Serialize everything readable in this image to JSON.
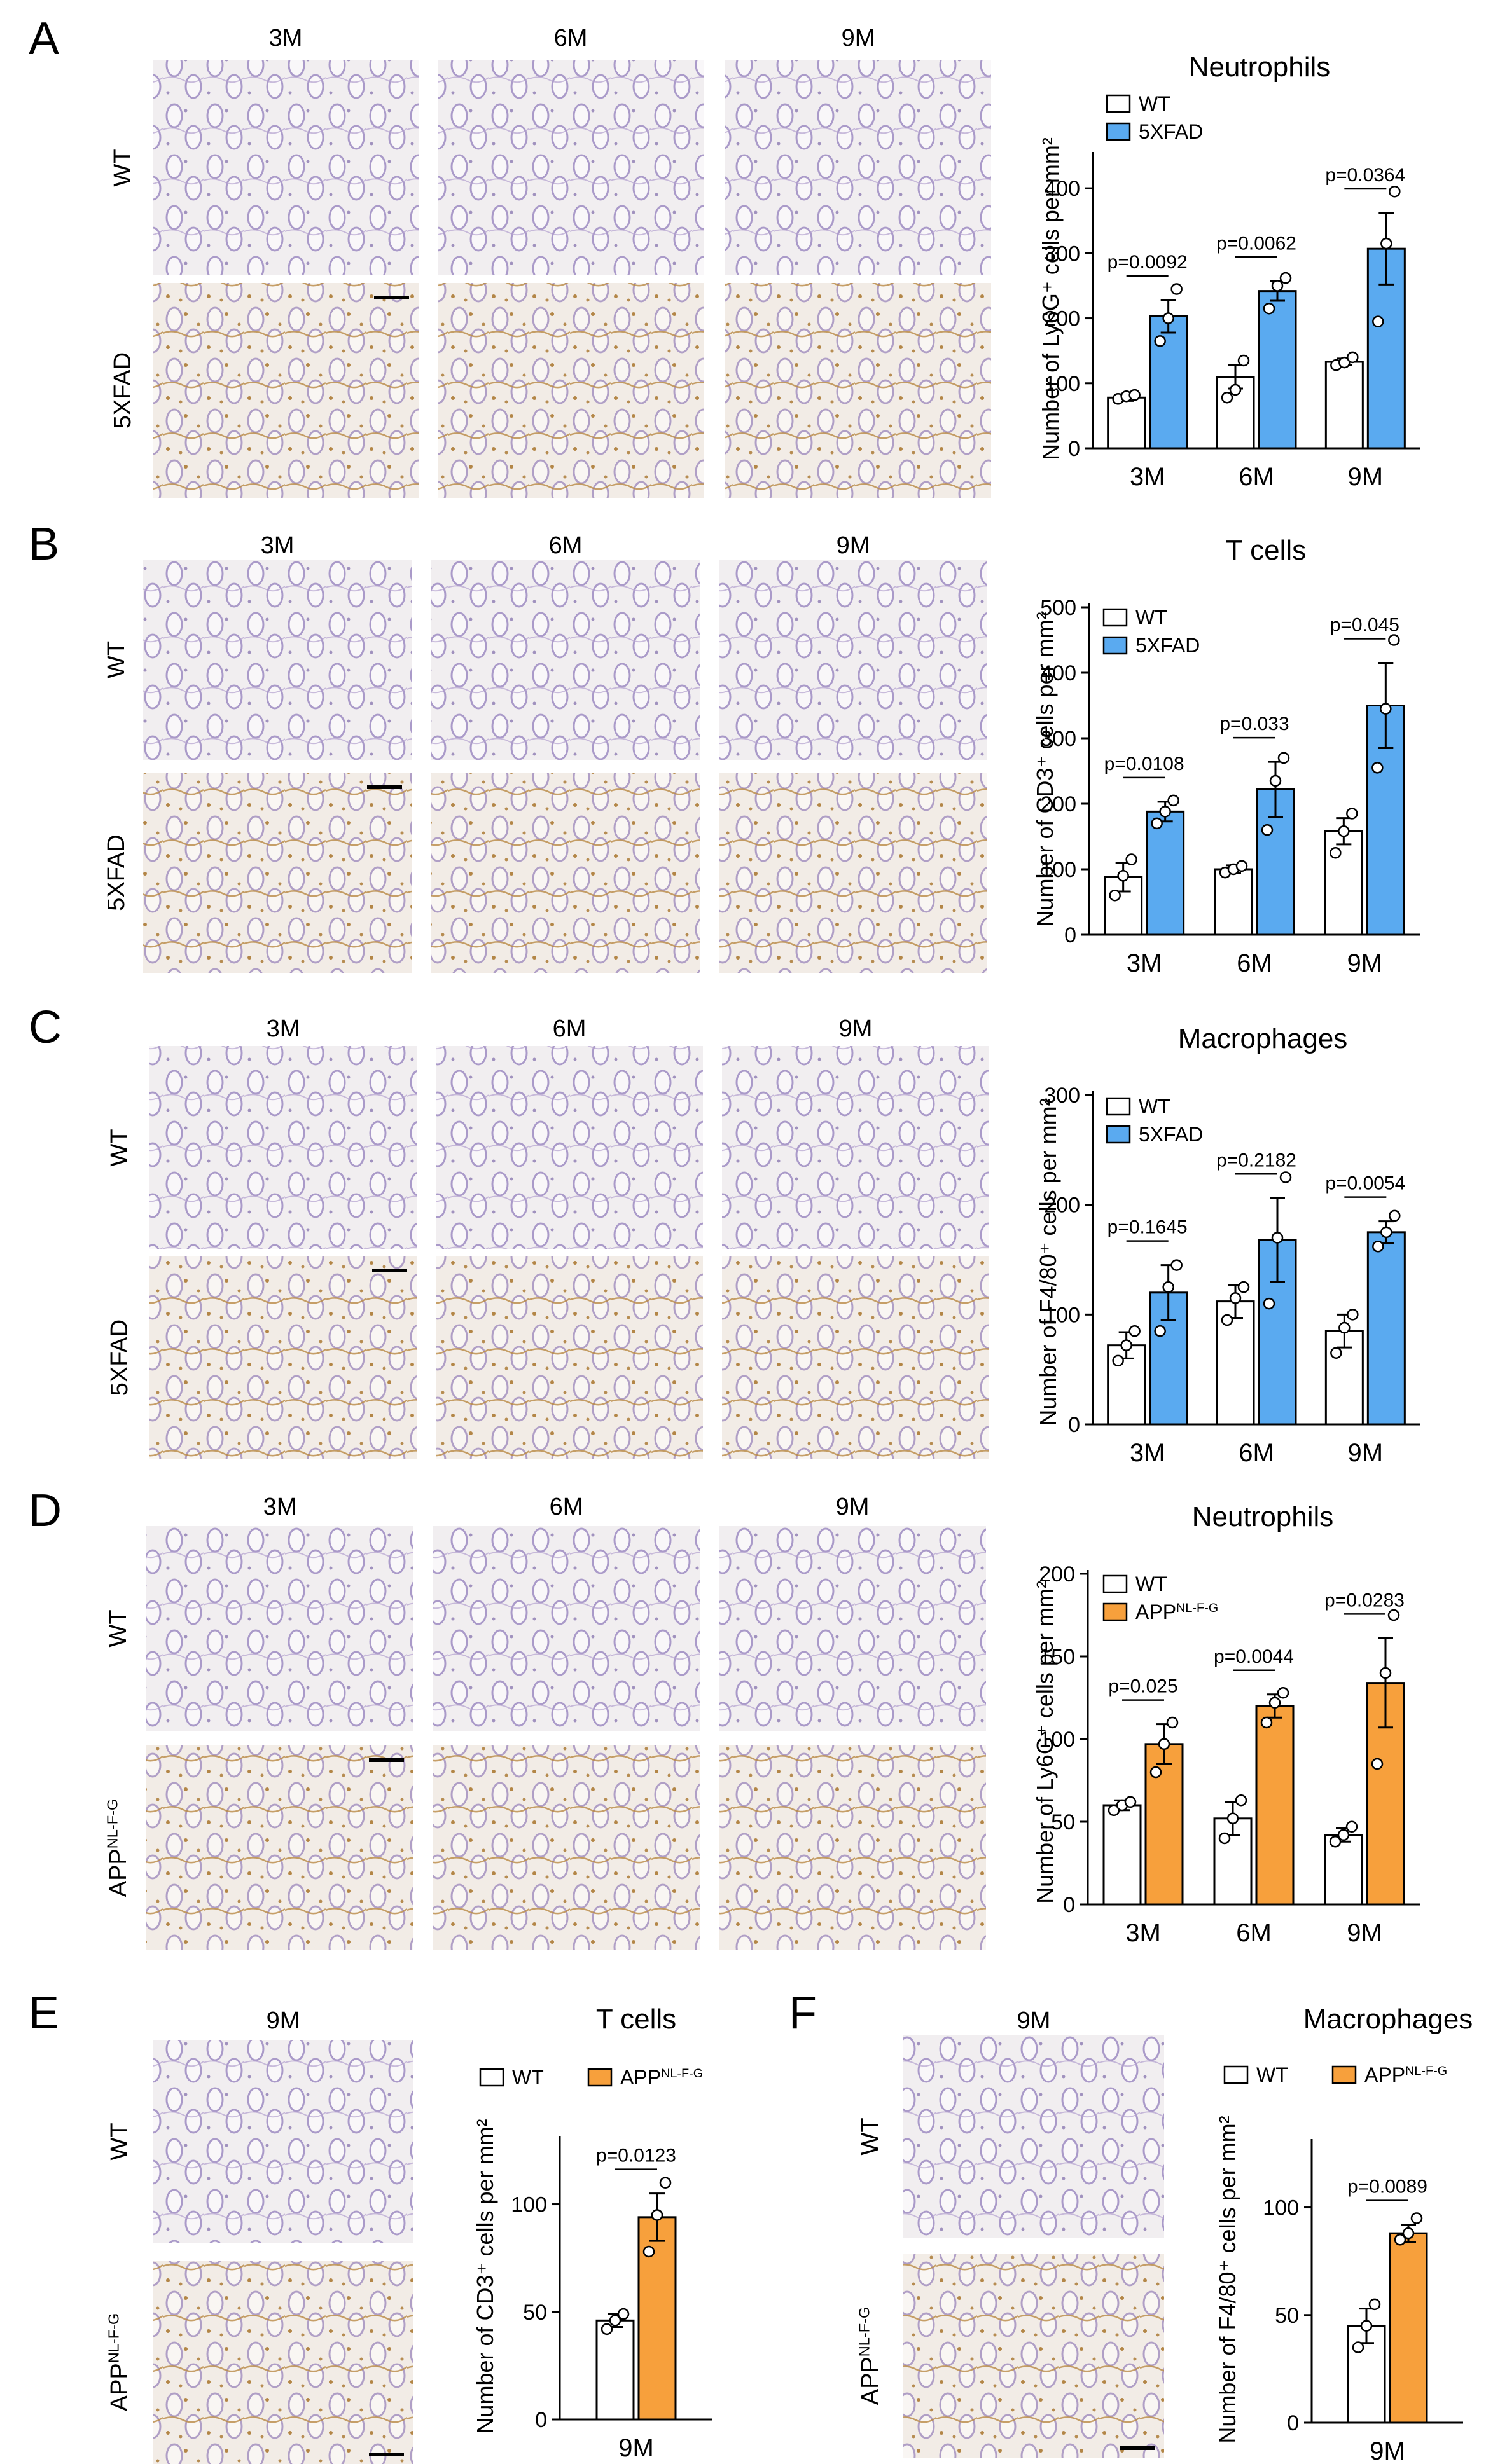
{
  "figure": {
    "colors": {
      "wt_fill": "#ffffff",
      "fad_fill": "#5aaaf0",
      "app_fill": "#f7a03c",
      "tissue_bg": "#eeeaec",
      "stain_purple": "#8a78b4",
      "stain_brown": "#b4823c"
    }
  },
  "panels": [
    {
      "letter": "A",
      "micrographs": {
        "columns": [
          "3M",
          "6M",
          "9M"
        ],
        "rows": [
          "WT",
          "5XFAD"
        ],
        "scale_bar": true
      },
      "chart_data": {
        "type": "bar",
        "title": "Neutrophils",
        "ylabel": "Number of Ly6G⁺ cells per mm²",
        "categories": [
          "3M",
          "6M",
          "9M"
        ],
        "ylim": [
          0,
          450
        ],
        "yticks": [
          0,
          100,
          200,
          300,
          400
        ],
        "legend": [
          "WT",
          "5XFAD"
        ],
        "series": [
          {
            "name": "WT",
            "values": [
              78,
              110,
              133
            ],
            "errors": [
              5,
              18,
              5
            ],
            "points": [
              [
                76,
                80,
                82
              ],
              [
                78,
                90,
                135
              ],
              [
                128,
                132,
                140
              ]
            ]
          },
          {
            "name": "5XFAD",
            "values": [
              203,
              242,
              307
            ],
            "errors": [
              25,
              15,
              55
            ],
            "points": [
              [
                165,
                200,
                245
              ],
              [
                215,
                250,
                262
              ],
              [
                195,
                315,
                395
              ]
            ]
          }
        ],
        "pvalues": [
          "p=0.0092",
          "p=0.0062",
          "p=0.0364"
        ]
      }
    },
    {
      "letter": "B",
      "micrographs": {
        "columns": [
          "3M",
          "6M",
          "9M"
        ],
        "rows": [
          "WT",
          "5XFAD"
        ],
        "scale_bar": true
      },
      "chart_data": {
        "type": "bar",
        "title": "T cells",
        "ylabel": "Number of CD3⁺ cells per mm²",
        "categories": [
          "3M",
          "6M",
          "9M"
        ],
        "ylim": [
          0,
          500
        ],
        "yticks": [
          0,
          100,
          200,
          300,
          400,
          500
        ],
        "legend": [
          "WT",
          "5XFAD"
        ],
        "series": [
          {
            "name": "WT",
            "values": [
              88,
              100,
              158
            ],
            "errors": [
              22,
              6,
              20
            ],
            "points": [
              [
                60,
                90,
                115
              ],
              [
                95,
                100,
                105
              ],
              [
                125,
                158,
                185
              ]
            ]
          },
          {
            "name": "5XFAD",
            "values": [
              188,
              222,
              350
            ],
            "errors": [
              15,
              42,
              65
            ],
            "points": [
              [
                170,
                188,
                205
              ],
              [
                160,
                235,
                270
              ],
              [
                255,
                345,
                450
              ]
            ]
          }
        ],
        "pvalues": [
          "p=0.0108",
          "p=0.033",
          "p=0.045"
        ]
      }
    },
    {
      "letter": "C",
      "micrographs": {
        "columns": [
          "3M",
          "6M",
          "9M"
        ],
        "rows": [
          "WT",
          "5XFAD"
        ],
        "scale_bar": true
      },
      "chart_data": {
        "type": "bar",
        "title": "Macrophages",
        "ylabel": "Number of F4/80⁺ cells per mm²",
        "categories": [
          "3M",
          "6M",
          "9M"
        ],
        "ylim": [
          0,
          300
        ],
        "yticks": [
          0,
          100,
          200,
          300
        ],
        "legend": [
          "WT",
          "5XFAD"
        ],
        "series": [
          {
            "name": "WT",
            "values": [
              72,
              112,
              85
            ],
            "errors": [
              12,
              15,
              15
            ],
            "points": [
              [
                58,
                72,
                85
              ],
              [
                95,
                115,
                125
              ],
              [
                65,
                88,
                100
              ]
            ]
          },
          {
            "name": "5XFAD",
            "values": [
              120,
              168,
              175
            ],
            "errors": [
              25,
              38,
              10
            ],
            "points": [
              [
                85,
                125,
                145
              ],
              [
                110,
                170,
                225
              ],
              [
                162,
                175,
                190
              ]
            ]
          }
        ],
        "pvalues": [
          "p=0.1645",
          "p=0.2182",
          "p=0.0054"
        ]
      }
    },
    {
      "letter": "D",
      "micrographs": {
        "columns": [
          "3M",
          "6M",
          "9M"
        ],
        "rows": [
          "WT",
          "APPNL-F-G"
        ],
        "scale_bar": true
      },
      "chart_data": {
        "type": "bar",
        "title": "Neutrophils",
        "ylabel": "Number of Ly6G⁺ cells per mm²",
        "categories": [
          "3M",
          "6M",
          "9M"
        ],
        "ylim": [
          0,
          200
        ],
        "yticks": [
          0,
          50,
          100,
          150,
          200
        ],
        "legend": [
          "WT",
          "APPNL-F-G"
        ],
        "series": [
          {
            "name": "WT",
            "values": [
              60,
              52,
              42
            ],
            "errors": [
              3,
              10,
              4
            ],
            "points": [
              [
                57,
                60,
                62
              ],
              [
                40,
                52,
                63
              ],
              [
                38,
                42,
                47
              ]
            ]
          },
          {
            "name": "APPNL-F-G",
            "values": [
              97,
              120,
              134
            ],
            "errors": [
              12,
              7,
              27
            ],
            "points": [
              [
                80,
                97,
                110
              ],
              [
                110,
                122,
                128
              ],
              [
                85,
                140,
                175
              ]
            ]
          }
        ],
        "pvalues": [
          "p=0.025",
          "p=0.0044",
          "p=0.0283"
        ]
      }
    },
    {
      "letter": "E",
      "micrographs": {
        "columns": [
          "9M"
        ],
        "rows": [
          "WT",
          "APPNL-F-G"
        ],
        "scale_bar": true
      },
      "chart_data": {
        "type": "bar",
        "title": "T cells",
        "ylabel": "Number of CD3⁺ cells per mm²",
        "categories": [
          "9M"
        ],
        "ylim": [
          0,
          130
        ],
        "yticks": [
          0,
          50,
          100
        ],
        "legend": [
          "WT",
          "APPNL-F-G"
        ],
        "series": [
          {
            "name": "WT",
            "values": [
              46
            ],
            "errors": [
              3
            ],
            "points": [
              [
                42,
                46,
                49
              ]
            ]
          },
          {
            "name": "APPNL-F-G",
            "values": [
              94
            ],
            "errors": [
              11
            ],
            "points": [
              [
                78,
                95,
                110
              ]
            ]
          }
        ],
        "pvalues": [
          "p=0.0123"
        ]
      }
    },
    {
      "letter": "F",
      "micrographs": {
        "columns": [
          "9M"
        ],
        "rows": [
          "WT",
          "APPNL-F-G"
        ],
        "scale_bar": true
      },
      "chart_data": {
        "type": "bar",
        "title": "Macrophages",
        "ylabel": "Number of F4/80⁺ cells per mm²",
        "categories": [
          "9M"
        ],
        "ylim": [
          0,
          130
        ],
        "yticks": [
          0,
          50,
          100
        ],
        "legend": [
          "WT",
          "APPNL-F-G"
        ],
        "series": [
          {
            "name": "WT",
            "values": [
              45
            ],
            "errors": [
              8
            ],
            "points": [
              [
                35,
                45,
                55
              ]
            ]
          },
          {
            "name": "APPNL-F-G",
            "values": [
              88
            ],
            "errors": [
              4
            ],
            "points": [
              [
                85,
                88,
                95
              ]
            ]
          }
        ],
        "pvalues": [
          "p=0.0089"
        ]
      }
    }
  ]
}
